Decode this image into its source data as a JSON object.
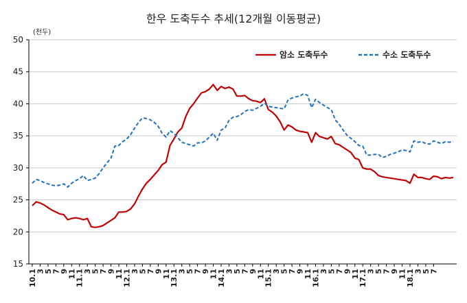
{
  "chart_data": {
    "type": "line",
    "title": "한우 도축두수 추세(12개월 이동평균)",
    "unit_label": "(천두)",
    "ylim": [
      15,
      50
    ],
    "yticks": [
      15,
      20,
      25,
      30,
      35,
      40,
      45,
      50
    ],
    "grid": "horizontal",
    "legend_position": "top-right",
    "x_tick_labels": [
      "10.1",
      "3",
      "5",
      "7",
      "9",
      "11",
      "11.1",
      "3",
      "5",
      "7",
      "9",
      "11",
      "12.1",
      "3",
      "5",
      "7",
      "9",
      "11",
      "13.1",
      "3",
      "5",
      "7",
      "9",
      "11",
      "14.1",
      "3",
      "5",
      "7",
      "9",
      "11",
      "15.1",
      "3",
      "5",
      "7",
      "9",
      "11",
      "16.1",
      "3",
      "5",
      "7",
      "9",
      "11",
      "17.1",
      "3",
      "5",
      "7",
      "9",
      "11",
      "18.1",
      "3",
      "5",
      "7"
    ],
    "series": [
      {
        "name": "암소 도축두수",
        "color": "#c00000",
        "style": "solid",
        "values": [
          24.1,
          24.7,
          24.5,
          24.2,
          23.8,
          23.4,
          23.1,
          22.8,
          22.7,
          21.9,
          22.1,
          22.2,
          22.1,
          21.9,
          22.1,
          20.8,
          20.7,
          20.8,
          21.0,
          21.4,
          21.8,
          22.2,
          23.1,
          23.1,
          23.2,
          23.6,
          24.4,
          25.6,
          26.7,
          27.6,
          28.2,
          28.9,
          29.6,
          30.5,
          30.9,
          33.5,
          34.5,
          35.6,
          36.2,
          38.0,
          39.3,
          40.0,
          40.9,
          41.7,
          41.9,
          42.3,
          43.0,
          42.1,
          42.7,
          42.4,
          42.6,
          42.3,
          41.2,
          41.2,
          41.3,
          40.8,
          40.5,
          40.4,
          40.2,
          40.8,
          39.1,
          38.7,
          38.1,
          37.2,
          35.9,
          36.7,
          36.4,
          35.9,
          35.7,
          35.6,
          35.5,
          34.0,
          35.5,
          34.9,
          34.7,
          34.5,
          34.9,
          33.8,
          33.6,
          33.2,
          32.8,
          32.4,
          31.5,
          31.3,
          30.0,
          29.8,
          29.8,
          29.4,
          28.8,
          28.6,
          28.5,
          28.4,
          28.3,
          28.2,
          28.1,
          28.0,
          27.6,
          29.0,
          28.5,
          28.5,
          28.3,
          28.2,
          28.7,
          28.6,
          28.3,
          28.5,
          28.4,
          28.5
        ]
      },
      {
        "name": "수소 도축두수",
        "color": "#1f6fc5",
        "style": "dashed",
        "values": [
          27.6,
          28.2,
          28.0,
          27.7,
          27.5,
          27.3,
          27.2,
          27.3,
          27.5,
          27.0,
          27.6,
          28.0,
          28.3,
          28.8,
          28.0,
          28.2,
          28.4,
          29.1,
          30.0,
          30.8,
          31.5,
          33.4,
          33.5,
          34.1,
          34.5,
          35.2,
          36.2,
          37.1,
          37.8,
          37.7,
          37.5,
          37.1,
          36.5,
          35.4,
          34.8,
          35.8,
          35.4,
          34.7,
          34.0,
          33.8,
          33.6,
          33.4,
          33.9,
          33.9,
          34.2,
          34.8,
          35.4,
          34.3,
          35.9,
          36.2,
          37.4,
          37.9,
          38.0,
          38.3,
          38.8,
          39.1,
          39.0,
          39.3,
          39.6,
          40.1,
          39.6,
          39.5,
          39.4,
          39.3,
          39.2,
          40.6,
          40.9,
          41.1,
          41.2,
          41.6,
          41.3,
          39.4,
          40.7,
          40.2,
          39.8,
          39.4,
          39.1,
          37.5,
          36.8,
          35.9,
          35.1,
          34.6,
          34.1,
          33.5,
          33.4,
          32.0,
          32.0,
          32.1,
          32.1,
          31.6,
          31.8,
          32.1,
          32.3,
          32.5,
          32.8,
          32.7,
          32.5,
          34.2,
          34.0,
          34.1,
          33.8,
          33.7,
          34.2,
          34.0,
          33.8,
          34.1,
          34.0,
          34.1
        ]
      }
    ]
  }
}
